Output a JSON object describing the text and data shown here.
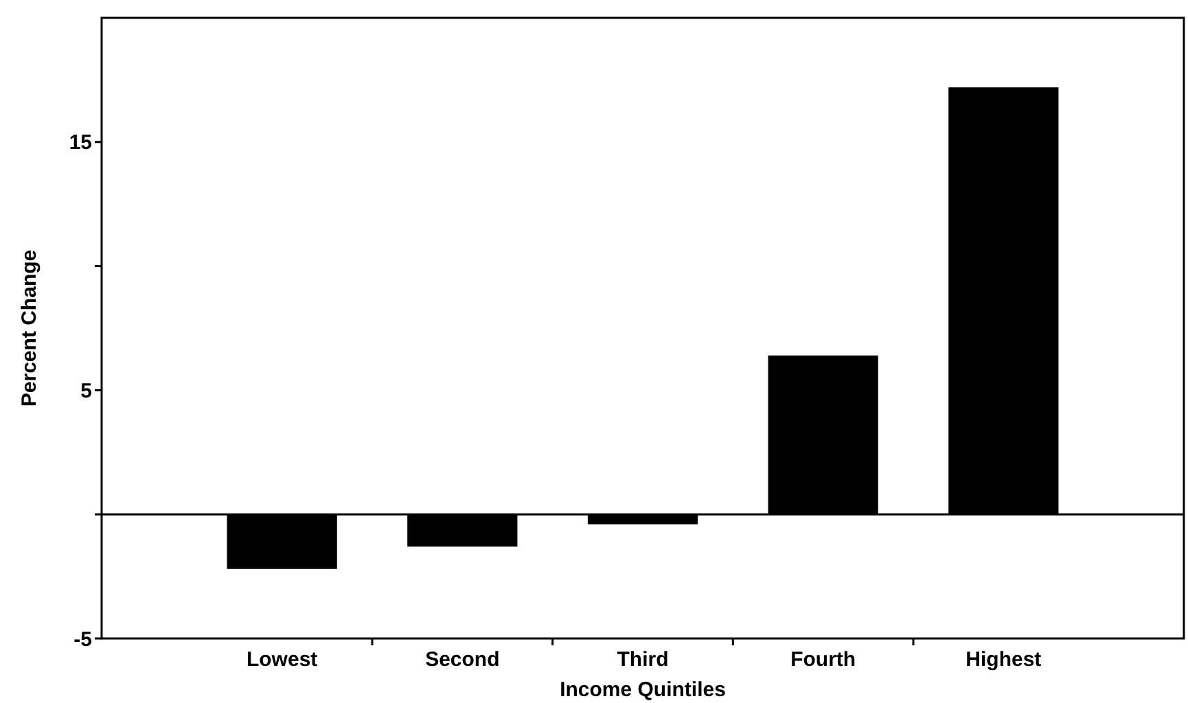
{
  "chart_data": {
    "type": "bar",
    "xlabel": "Income Quintiles",
    "ylabel": "Percent Change",
    "categories": [
      "Lowest",
      "Second",
      "Third",
      "Fourth",
      "Highest"
    ],
    "values": [
      -2.2,
      -1.3,
      -0.4,
      6.4,
      17.2
    ],
    "color": "#000000",
    "ylim": [
      -5,
      20
    ],
    "yticks": [
      -5,
      {
        "value": 0,
        "label": null
      },
      5,
      {
        "value": 10,
        "label": null
      },
      15
    ],
    "ref_lines": [
      {
        "axis": "y",
        "value": 0,
        "label": null,
        "color": "#000000"
      }
    ],
    "grid": false
  }
}
